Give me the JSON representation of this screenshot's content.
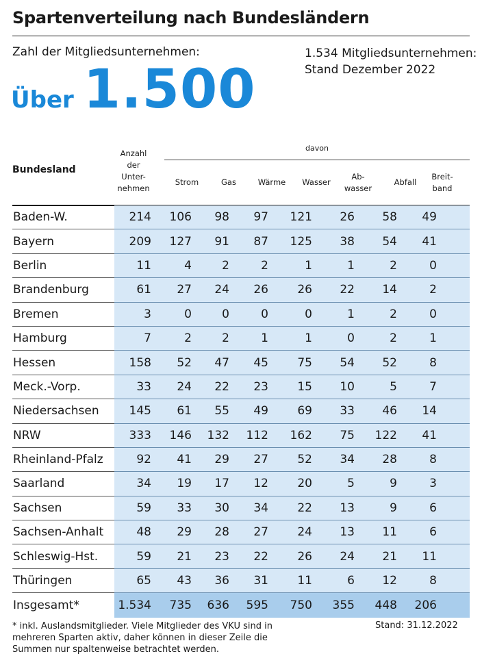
{
  "title": "Spartenverteilung nach Bundesländern",
  "left_heading": "Zahl der Mitgliedsunternehmen:",
  "big_prefix": "Über",
  "big_number": "1.500",
  "right_heading_line1": "1.534 Mitgliedsunternehmen:",
  "right_heading_line2": "Stand Dezember 2022",
  "table": {
    "col_bundesland": "Bundesland",
    "col_anzahl": [
      "Anzahl",
      "der",
      "Unter-",
      "nehmen"
    ],
    "davon": "davon",
    "col_strom": "Strom",
    "col_gas": "Gas",
    "col_waerme": "Wärme",
    "col_wasser": "Wasser",
    "col_abwasser": [
      "Ab-",
      "wasser"
    ],
    "col_abfall": "Abfall",
    "col_breitband": [
      "Breit-",
      "band"
    ],
    "rows": [
      {
        "name": "Baden-W.",
        "v": [
          "214",
          "106",
          "98",
          "97",
          "121",
          "26",
          "58",
          "49"
        ]
      },
      {
        "name": "Bayern",
        "v": [
          "209",
          "127",
          "91",
          "87",
          "125",
          "38",
          "54",
          "41"
        ]
      },
      {
        "name": "Berlin",
        "v": [
          "11",
          "4",
          "2",
          "2",
          "1",
          "1",
          "2",
          "0"
        ]
      },
      {
        "name": "Brandenburg",
        "v": [
          "61",
          "27",
          "24",
          "26",
          "26",
          "22",
          "14",
          "2"
        ]
      },
      {
        "name": "Bremen",
        "v": [
          "3",
          "0",
          "0",
          "0",
          "0",
          "1",
          "2",
          "0"
        ]
      },
      {
        "name": "Hamburg",
        "v": [
          "7",
          "2",
          "2",
          "1",
          "1",
          "0",
          "2",
          "1"
        ]
      },
      {
        "name": "Hessen",
        "v": [
          "158",
          "52",
          "47",
          "45",
          "75",
          "54",
          "52",
          "8"
        ]
      },
      {
        "name": "Meck.-Vorp.",
        "v": [
          "33",
          "24",
          "22",
          "23",
          "15",
          "10",
          "5",
          "7"
        ]
      },
      {
        "name": "Niedersachsen",
        "v": [
          "145",
          "61",
          "55",
          "49",
          "69",
          "33",
          "46",
          "14"
        ]
      },
      {
        "name": "NRW",
        "v": [
          "333",
          "146",
          "132",
          "112",
          "162",
          "75",
          "122",
          "41"
        ]
      },
      {
        "name": "Rheinland-Pfalz",
        "v": [
          "92",
          "41",
          "29",
          "27",
          "52",
          "34",
          "28",
          "8"
        ]
      },
      {
        "name": "Saarland",
        "v": [
          "34",
          "19",
          "17",
          "12",
          "20",
          "5",
          "9",
          "3"
        ]
      },
      {
        "name": "Sachsen",
        "v": [
          "59",
          "33",
          "30",
          "34",
          "22",
          "13",
          "9",
          "6"
        ]
      },
      {
        "name": "Sachsen-Anhalt",
        "v": [
          "48",
          "29",
          "28",
          "27",
          "24",
          "13",
          "11",
          "6"
        ]
      },
      {
        "name": "Schleswig-Hst.",
        "v": [
          "59",
          "21",
          "23",
          "22",
          "26",
          "24",
          "21",
          "11"
        ]
      },
      {
        "name": "Thüringen",
        "v": [
          "65",
          "43",
          "36",
          "31",
          "11",
          "6",
          "12",
          "8"
        ]
      }
    ],
    "total": {
      "name": "Insgesamt*",
      "v": [
        "1.534",
        "735",
        "636",
        "595",
        "750",
        "355",
        "448",
        "206"
      ]
    }
  },
  "footnote": "* inkl. Auslandsmitglieder. Viele Mitglieder des VKU sind in mehreren Sparten aktiv, daher können in dieser Zeile die Summen nur spaltenweise betrachtet werden.",
  "stand": "Stand: 31.12.2022"
}
